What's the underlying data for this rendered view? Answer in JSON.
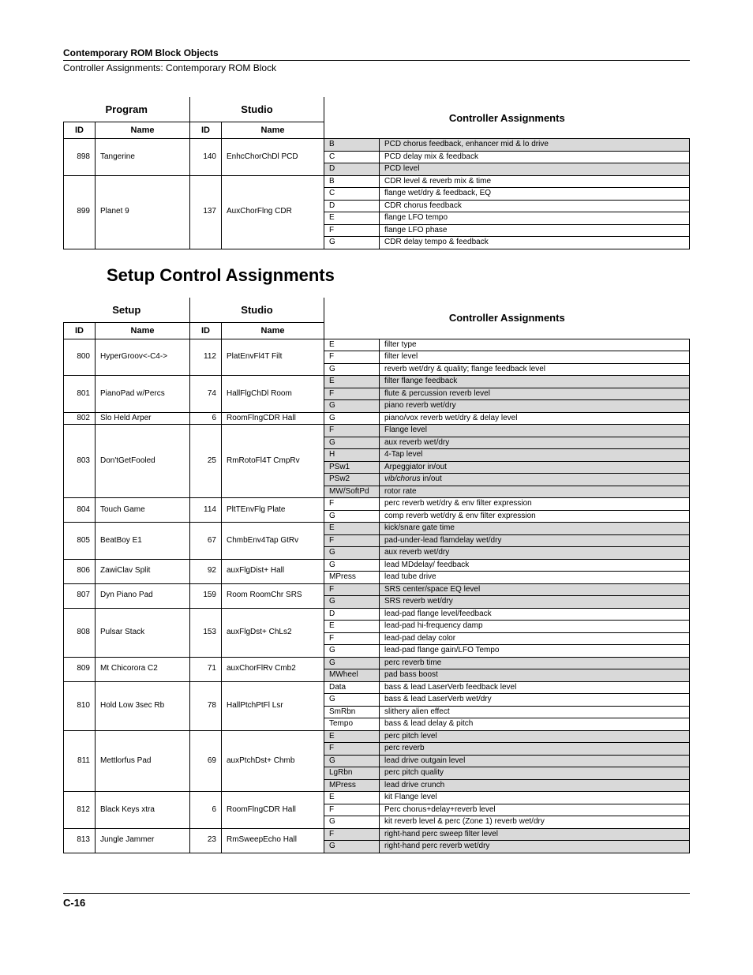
{
  "header": {
    "title": "Contemporary ROM Block Objects",
    "subtitle": "Controller Assignments: Contemporary ROM Block"
  },
  "table1": {
    "group_headers": {
      "program": "Program",
      "studio": "Studio",
      "ca": "Controller Assignments"
    },
    "sub_headers": {
      "pid": "ID",
      "pname": "Name",
      "sid": "ID",
      "sname": "Name"
    },
    "rows": [
      {
        "pid": "898",
        "pname": "Tangerine",
        "sid": "140",
        "sname": "EnhcChorChDl PCD",
        "assignments": [
          {
            "k": "B",
            "v": "PCD chorus feedback, enhancer mid & lo drive",
            "shade": true
          },
          {
            "k": "C",
            "v": "PCD delay mix & feedback",
            "shade": false
          },
          {
            "k": "D",
            "v": "PCD level",
            "shade": true
          }
        ]
      },
      {
        "pid": "899",
        "pname": "Planet 9",
        "sid": "137",
        "sname": "AuxChorFlng CDR",
        "assignments": [
          {
            "k": "B",
            "v": "CDR level & reverb mix & time",
            "shade": false
          },
          {
            "k": "C",
            "v": "flange wet/dry & feedback, EQ",
            "shade": false
          },
          {
            "k": "D",
            "v": "CDR chorus feedback",
            "shade": false
          },
          {
            "k": "E",
            "v": "flange LFO tempo",
            "shade": false
          },
          {
            "k": "F",
            "v": "flange LFO phase",
            "shade": false
          },
          {
            "k": "G",
            "v": "CDR delay tempo & feedback",
            "shade": false
          }
        ]
      }
    ]
  },
  "section_title": "Setup Control Assignments",
  "table2": {
    "group_headers": {
      "setup": "Setup",
      "studio": "Studio",
      "ca": "Controller Assignments"
    },
    "sub_headers": {
      "pid": "ID",
      "pname": "Name",
      "sid": "ID",
      "sname": "Name"
    },
    "rows": [
      {
        "pid": "800",
        "pname": "HyperGroov<-C4->",
        "sid": "112",
        "sname": "PlatEnvFl4T Filt",
        "assignments": [
          {
            "k": "E",
            "v": "filter type",
            "shade": false
          },
          {
            "k": "F",
            "v": "filter level",
            "shade": false
          },
          {
            "k": "G",
            "v": "reverb wet/dry & quality; flange feedback level",
            "shade": false
          }
        ]
      },
      {
        "pid": "801",
        "pname": "PianoPad w/Percs",
        "sid": "74",
        "sname": "HallFlgChDl Room",
        "assignments": [
          {
            "k": "E",
            "v": "filter flange feedback",
            "shade": true
          },
          {
            "k": "F",
            "v": "flute & percussion reverb level",
            "shade": true
          },
          {
            "k": "G",
            "v": "piano reverb wet/dry",
            "shade": true
          }
        ]
      },
      {
        "pid": "802",
        "pname": "Slo Held Arper",
        "sid": "6",
        "sname": "RoomFlngCDR Hall",
        "assignments": [
          {
            "k": "G",
            "v": "piano/vox reverb wet/dry & delay level",
            "shade": false
          }
        ]
      },
      {
        "pid": "803",
        "pname": "Don'tGetFooled",
        "sid": "25",
        "sname": "RmRotoFl4T CmpRv",
        "assignments": [
          {
            "k": "F",
            "v": "Flange level",
            "shade": true
          },
          {
            "k": "G",
            "v": "aux reverb wet/dry",
            "shade": true
          },
          {
            "k": "H",
            "v": "4-Tap level",
            "shade": true
          },
          {
            "k": "PSw1",
            "v": "Arpeggiator in/out",
            "shade": true
          },
          {
            "k": "PSw2",
            "v": "<span class=\"italic\">vib/chorus</span> in/out",
            "shade": true,
            "html": true
          },
          {
            "k": "MW/SoftPd",
            "v": "rotor rate",
            "shade": true
          }
        ]
      },
      {
        "pid": "804",
        "pname": "Touch Game",
        "sid": "114",
        "sname": "PltTEnvFlg Plate",
        "assignments": [
          {
            "k": "F",
            "v": "perc reverb wet/dry & env filter expression",
            "shade": false
          },
          {
            "k": "G",
            "v": "comp reverb wet/dry & env filter expression",
            "shade": false
          }
        ]
      },
      {
        "pid": "805",
        "pname": "BeatBoy E1",
        "sid": "67",
        "sname": "ChmbEnv4Tap GtRv",
        "assignments": [
          {
            "k": "E",
            "v": "kick/snare gate time",
            "shade": true
          },
          {
            "k": "F",
            "v": "pad-under-lead flamdelay wet/dry",
            "shade": true
          },
          {
            "k": "G",
            "v": "aux reverb wet/dry",
            "shade": true
          }
        ]
      },
      {
        "pid": "806",
        "pname": "ZawiClav Split",
        "sid": "92",
        "sname": "auxFlgDist+ Hall",
        "assignments": [
          {
            "k": "G",
            "v": "lead MDdelay/ feedback",
            "shade": false
          },
          {
            "k": "MPress",
            "v": "lead tube drive",
            "shade": false
          }
        ]
      },
      {
        "pid": "807",
        "pname": "Dyn Piano Pad",
        "sid": "159",
        "sname": "Room RoomChr SRS",
        "assignments": [
          {
            "k": "F",
            "v": "SRS center/space EQ level",
            "shade": true
          },
          {
            "k": "G",
            "v": "SRS reverb wet/dry",
            "shade": true
          }
        ]
      },
      {
        "pid": "808",
        "pname": "Pulsar Stack",
        "sid": "153",
        "sname": "auxFlgDst+ ChLs2",
        "assignments": [
          {
            "k": "D",
            "v": "lead-pad flange level/feedback",
            "shade": false
          },
          {
            "k": "E",
            "v": "lead-pad hi-frequency damp",
            "shade": false
          },
          {
            "k": "F",
            "v": "lead-pad delay color",
            "shade": false
          },
          {
            "k": "G",
            "v": "lead-pad flange gain/LFO Tempo",
            "shade": false
          }
        ]
      },
      {
        "pid": "809",
        "pname": "Mt Chicorora C2",
        "sid": "71",
        "sname": "auxChorFlRv Cmb2",
        "assignments": [
          {
            "k": "G",
            "v": "perc reverb time",
            "shade": true
          },
          {
            "k": "MWheel",
            "v": "pad bass boost",
            "shade": true
          }
        ]
      },
      {
        "pid": "810",
        "pname": "Hold Low 3sec Rb",
        "sid": "78",
        "sname": "HallPtchPtFl Lsr",
        "assignments": [
          {
            "k": "Data",
            "v": "bass & lead LaserVerb feedback level",
            "shade": false
          },
          {
            "k": "G",
            "v": "bass & lead LaserVerb wet/dry",
            "shade": false
          },
          {
            "k": "SmRbn",
            "v": "slithery alien effect",
            "shade": false
          },
          {
            "k": "Tempo",
            "v": "bass & lead delay & pitch",
            "shade": false
          }
        ]
      },
      {
        "pid": "811",
        "pname": "Mettlorfus Pad",
        "sid": "69",
        "sname": "auxPtchDst+ Chmb",
        "assignments": [
          {
            "k": "E",
            "v": "perc pitch level",
            "shade": true
          },
          {
            "k": "F",
            "v": "perc reverb",
            "shade": true
          },
          {
            "k": "G",
            "v": "lead drive outgain level",
            "shade": true
          },
          {
            "k": "LgRbn",
            "v": "perc pitch quality",
            "shade": true
          },
          {
            "k": "MPress",
            "v": "lead drive crunch",
            "shade": true
          }
        ]
      },
      {
        "pid": "812",
        "pname": "Black Keys xtra",
        "sid": "6",
        "sname": "RoomFlngCDR Hall",
        "assignments": [
          {
            "k": "E",
            "v": "kit Flange level",
            "shade": false
          },
          {
            "k": "F",
            "v": "Perc chorus+delay+reverb level",
            "shade": false
          },
          {
            "k": "G",
            "v": "kit reverb level & perc (Zone 1) reverb wet/dry",
            "shade": false
          }
        ]
      },
      {
        "pid": "813",
        "pname": "Jungle Jammer",
        "sid": "23",
        "sname": "RmSweepEcho Hall",
        "assignments": [
          {
            "k": "F",
            "v": "right-hand perc sweep filter level",
            "shade": true
          },
          {
            "k": "G",
            "v": "right-hand perc reverb wet/dry",
            "shade": true
          }
        ]
      }
    ]
  },
  "footer": "C-16"
}
